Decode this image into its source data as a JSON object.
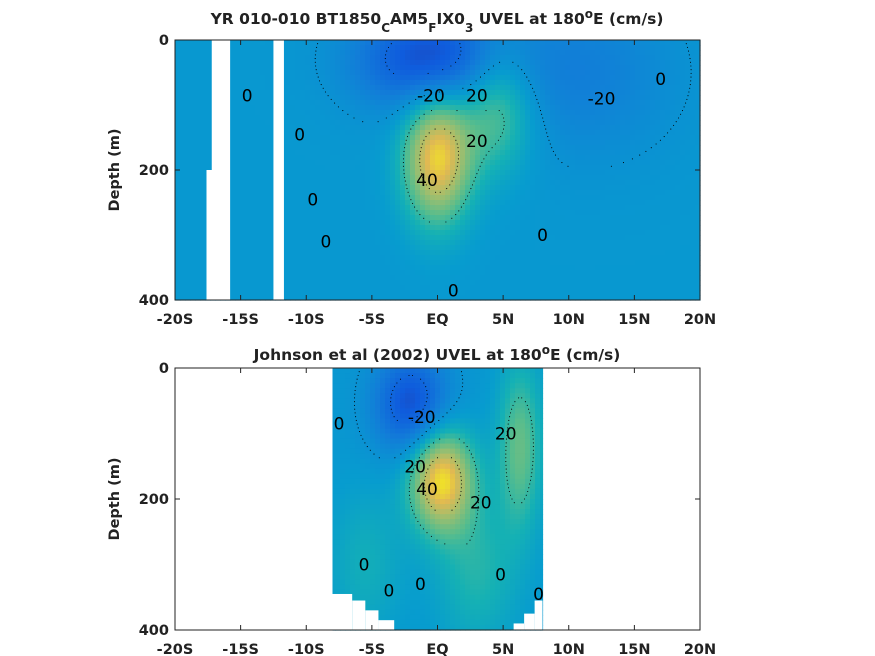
{
  "chart_data": [
    {
      "type": "heatmap",
      "title": {
        "pre": "YR 010-010 BT1850",
        "sub1": "C",
        "mid1": "AM5",
        "sub2": "F",
        "mid2": "IX0",
        "sub3": "3",
        "post1": " UVEL at 180",
        "sup": "o",
        "post2": "E (cm/s)"
      },
      "xlabel": "",
      "ylabel": "Depth (m)",
      "xlim": [
        -20,
        20
      ],
      "ylim": [
        400,
        0
      ],
      "x_ticks": [
        -20,
        -15,
        -10,
        -5,
        0,
        5,
        10,
        15,
        20
      ],
      "x_tick_labels": [
        "-20S",
        "-15S",
        "-10S",
        "-5S",
        "EQ",
        "5N",
        "10N",
        "15N",
        "20N"
      ],
      "y_ticks": [
        0,
        200,
        400
      ],
      "y_tick_labels": [
        "0",
        "200",
        "400"
      ],
      "colormap": "parula",
      "color_range": [
        -40,
        60
      ],
      "features": [
        {
          "kind": "core",
          "lat": 0.0,
          "depth": 180,
          "value": 50,
          "lat_width": 1.8,
          "depth_width": 70
        },
        {
          "kind": "core",
          "lat": 4.5,
          "depth": 100,
          "value": 26,
          "lat_width": 2.0,
          "depth_width": 70
        },
        {
          "kind": "core",
          "lat": -0.5,
          "depth": 30,
          "value": -34,
          "lat_width": 4.0,
          "depth_width": 55
        },
        {
          "kind": "core",
          "lat": 11.0,
          "depth": 50,
          "value": -12,
          "lat_width": 5.0,
          "depth_width": 90
        }
      ],
      "missing_bands": [
        {
          "lat_from": -17.6,
          "lat_to": -15.8,
          "depth_from": 200,
          "depth_to": 400
        },
        {
          "lat_from": -17.2,
          "lat_to": -15.8,
          "depth_from": 0,
          "depth_to": 200
        },
        {
          "lat_from": -12.5,
          "lat_to": -11.7,
          "depth_from": 0,
          "depth_to": 400
        }
      ],
      "data_extent": {
        "lat_from": -20,
        "lat_to": 20
      },
      "contour_labels": [
        {
          "text": "0",
          "lat": -14.5,
          "depth": 85
        },
        {
          "text": "0",
          "lat": -10.5,
          "depth": 145
        },
        {
          "text": "0",
          "lat": -9.5,
          "depth": 245
        },
        {
          "text": "0",
          "lat": -8.5,
          "depth": 310
        },
        {
          "text": "-20",
          "lat": -0.5,
          "depth": 85
        },
        {
          "text": "20",
          "lat": 3.0,
          "depth": 85
        },
        {
          "text": "20",
          "lat": 3.0,
          "depth": 155
        },
        {
          "text": "40",
          "lat": -0.8,
          "depth": 215
        },
        {
          "text": "0",
          "lat": 8.0,
          "depth": 300
        },
        {
          "text": "0",
          "lat": 1.2,
          "depth": 385
        },
        {
          "text": "-20",
          "lat": 12.5,
          "depth": 90
        },
        {
          "text": "0",
          "lat": 17.0,
          "depth": 60
        }
      ]
    },
    {
      "type": "heatmap",
      "title": {
        "pre": "Johnson et al (2002) UVEL at 180",
        "sup": "o",
        "post": "E (cm/s)"
      },
      "xlabel": "",
      "ylabel": "Depth (m)",
      "xlim": [
        -20,
        20
      ],
      "ylim": [
        400,
        0
      ],
      "x_ticks": [
        -20,
        -15,
        -10,
        -5,
        0,
        5,
        10,
        15,
        20
      ],
      "x_tick_labels": [
        "-20S",
        "-15S",
        "-10S",
        "-5S",
        "EQ",
        "5N",
        "10N",
        "15N",
        "20N"
      ],
      "y_ticks": [
        0,
        200,
        400
      ],
      "y_tick_labels": [
        "0",
        "200",
        "400"
      ],
      "colormap": "parula",
      "color_range": [
        -40,
        60
      ],
      "features": [
        {
          "kind": "core",
          "lat": 0.3,
          "depth": 170,
          "value": 52,
          "lat_width": 1.7,
          "depth_width": 55
        },
        {
          "kind": "core",
          "lat": 6.3,
          "depth": 120,
          "value": 24,
          "lat_width": 1.2,
          "depth_width": 90
        },
        {
          "kind": "core",
          "lat": -2.0,
          "depth": 55,
          "value": -32,
          "lat_width": 2.0,
          "depth_width": 55
        },
        {
          "kind": "core",
          "lat": 3.0,
          "depth": 310,
          "value": 14,
          "lat_width": 2.2,
          "depth_width": 80
        },
        {
          "kind": "core",
          "lat": -5.5,
          "depth": 300,
          "value": 10,
          "lat_width": 2.0,
          "depth_width": 80
        }
      ],
      "data_extent": {
        "lat_from": -8.0,
        "lat_to": 8.0
      },
      "bottom_cut": [
        {
          "lat_from": -8.0,
          "lat_to": -6.5,
          "depth": 345
        },
        {
          "lat_from": -6.5,
          "lat_to": -5.5,
          "depth": 355
        },
        {
          "lat_from": -5.5,
          "lat_to": -4.5,
          "depth": 370
        },
        {
          "lat_from": -4.5,
          "lat_to": -3.3,
          "depth": 385
        },
        {
          "lat_from": 5.8,
          "lat_to": 6.6,
          "depth": 390
        },
        {
          "lat_from": 6.6,
          "lat_to": 7.4,
          "depth": 375
        },
        {
          "lat_from": 7.4,
          "lat_to": 8.0,
          "depth": 355
        }
      ],
      "contour_labels": [
        {
          "text": "0",
          "lat": -7.5,
          "depth": 85
        },
        {
          "text": "-20",
          "lat": -1.2,
          "depth": 75
        },
        {
          "text": "20",
          "lat": 5.2,
          "depth": 100
        },
        {
          "text": "20",
          "lat": -1.7,
          "depth": 150
        },
        {
          "text": "40",
          "lat": -0.8,
          "depth": 185
        },
        {
          "text": "20",
          "lat": 3.3,
          "depth": 205
        },
        {
          "text": "0",
          "lat": -5.6,
          "depth": 300
        },
        {
          "text": "0",
          "lat": -3.7,
          "depth": 340
        },
        {
          "text": "0",
          "lat": -1.3,
          "depth": 330
        },
        {
          "text": "0",
          "lat": 4.8,
          "depth": 315
        },
        {
          "text": "0",
          "lat": 7.7,
          "depth": 345
        }
      ]
    }
  ]
}
